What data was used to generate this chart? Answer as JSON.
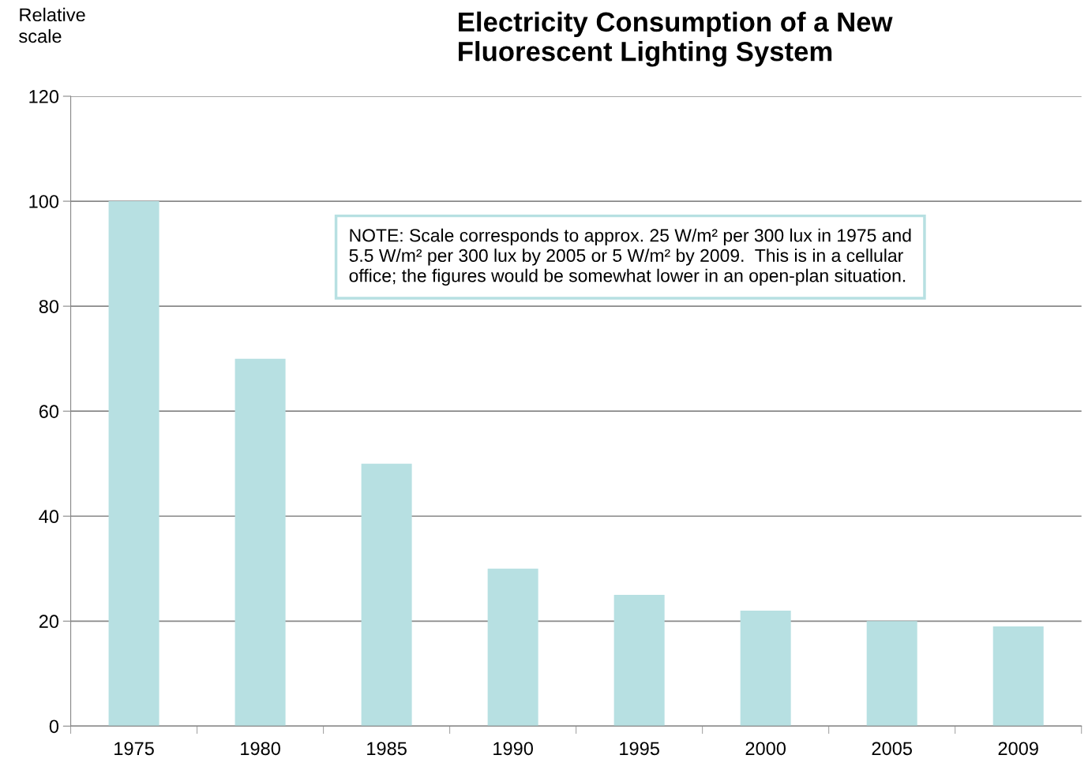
{
  "chart_data": {
    "type": "bar",
    "title": "Electricity Consumption of a New\nFluorescent Lighting System",
    "ylabel": "Relative\nscale",
    "categories": [
      "1975",
      "1980",
      "1985",
      "1990",
      "1995",
      "2000",
      "2005",
      "2009"
    ],
    "values": [
      100,
      70,
      50,
      30,
      25,
      22,
      20,
      19
    ],
    "color": "#b7e0e2",
    "ylim": [
      0,
      120
    ],
    "yticks": [
      0,
      20,
      40,
      60,
      80,
      100,
      120
    ],
    "grid": "y",
    "legend": false,
    "annotations": [
      "NOTE: Scale corresponds to approx. 25 W/m² per 300 lux in 1975 and\n5.5 W/m² per 300 lux by 2005 or 5 W/m² by 2009.  This is in a cellular\noffice; the figures would be somewhat lower in an open-plan situation."
    ]
  }
}
